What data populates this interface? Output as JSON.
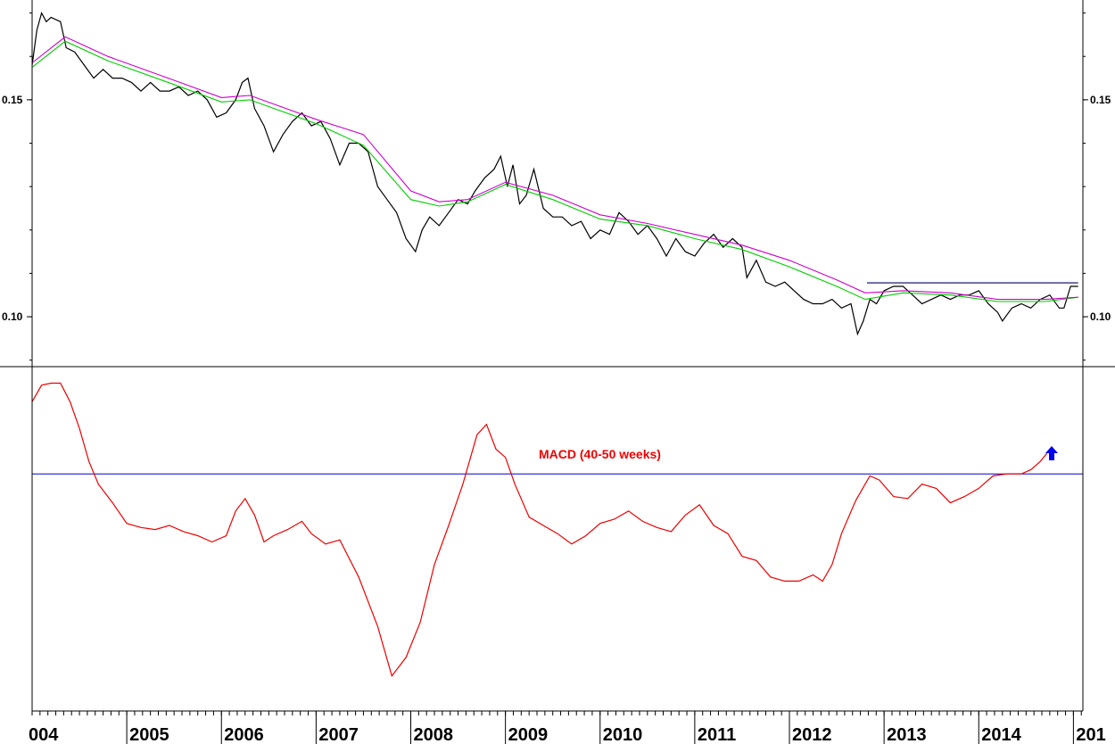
{
  "chart_data": [
    {
      "type": "line",
      "panel": "price",
      "ylim": [
        0.0885,
        0.173
      ],
      "y_ticks": [
        0.1,
        0.15
      ],
      "y_tick_labels": [
        "0.10",
        "0.15"
      ],
      "grid": false,
      "series": [
        {
          "color": "#000000",
          "points": [
            [
              2004.0,
              0.158
            ],
            [
              2004.05,
              0.166
            ],
            [
              2004.1,
              0.17
            ],
            [
              2004.15,
              0.168
            ],
            [
              2004.2,
              0.169
            ],
            [
              2004.3,
              0.168
            ],
            [
              2004.36,
              0.162
            ],
            [
              2004.45,
              0.161
            ],
            [
              2004.55,
              0.158
            ],
            [
              2004.65,
              0.155
            ],
            [
              2004.75,
              0.157
            ],
            [
              2004.85,
              0.155
            ],
            [
              2004.95,
              0.155
            ],
            [
              2005.05,
              0.154
            ],
            [
              2005.15,
              0.152
            ],
            [
              2005.25,
              0.154
            ],
            [
              2005.35,
              0.152
            ],
            [
              2005.45,
              0.152
            ],
            [
              2005.55,
              0.153
            ],
            [
              2005.65,
              0.151
            ],
            [
              2005.75,
              0.152
            ],
            [
              2005.85,
              0.15
            ],
            [
              2005.95,
              0.146
            ],
            [
              2006.05,
              0.147
            ],
            [
              2006.15,
              0.15
            ],
            [
              2006.22,
              0.154
            ],
            [
              2006.28,
              0.155
            ],
            [
              2006.35,
              0.148
            ],
            [
              2006.45,
              0.144
            ],
            [
              2006.55,
              0.138
            ],
            [
              2006.65,
              0.142
            ],
            [
              2006.75,
              0.145
            ],
            [
              2006.85,
              0.147
            ],
            [
              2006.95,
              0.144
            ],
            [
              2007.05,
              0.145
            ],
            [
              2007.15,
              0.141
            ],
            [
              2007.25,
              0.135
            ],
            [
              2007.35,
              0.14
            ],
            [
              2007.45,
              0.14
            ],
            [
              2007.55,
              0.138
            ],
            [
              2007.65,
              0.13
            ],
            [
              2007.75,
              0.127
            ],
            [
              2007.85,
              0.124
            ],
            [
              2007.95,
              0.118
            ],
            [
              2008.05,
              0.115
            ],
            [
              2008.12,
              0.12
            ],
            [
              2008.2,
              0.123
            ],
            [
              2008.3,
              0.121
            ],
            [
              2008.4,
              0.124
            ],
            [
              2008.5,
              0.127
            ],
            [
              2008.6,
              0.126
            ],
            [
              2008.68,
              0.129
            ],
            [
              2008.78,
              0.132
            ],
            [
              2008.88,
              0.134
            ],
            [
              2008.95,
              0.137
            ],
            [
              2009.02,
              0.13
            ],
            [
              2009.08,
              0.135
            ],
            [
              2009.15,
              0.126
            ],
            [
              2009.22,
              0.128
            ],
            [
              2009.3,
              0.134
            ],
            [
              2009.4,
              0.125
            ],
            [
              2009.5,
              0.123
            ],
            [
              2009.6,
              0.123
            ],
            [
              2009.7,
              0.121
            ],
            [
              2009.8,
              0.122
            ],
            [
              2009.9,
              0.118
            ],
            [
              2010.0,
              0.12
            ],
            [
              2010.1,
              0.119
            ],
            [
              2010.2,
              0.124
            ],
            [
              2010.3,
              0.122
            ],
            [
              2010.4,
              0.119
            ],
            [
              2010.5,
              0.121
            ],
            [
              2010.6,
              0.118
            ],
            [
              2010.7,
              0.114
            ],
            [
              2010.8,
              0.118
            ],
            [
              2010.9,
              0.115
            ],
            [
              2011.0,
              0.114
            ],
            [
              2011.1,
              0.117
            ],
            [
              2011.2,
              0.119
            ],
            [
              2011.3,
              0.116
            ],
            [
              2011.4,
              0.118
            ],
            [
              2011.5,
              0.116
            ],
            [
              2011.55,
              0.109
            ],
            [
              2011.65,
              0.113
            ],
            [
              2011.75,
              0.108
            ],
            [
              2011.85,
              0.107
            ],
            [
              2011.95,
              0.108
            ],
            [
              2012.05,
              0.106
            ],
            [
              2012.15,
              0.104
            ],
            [
              2012.25,
              0.103
            ],
            [
              2012.35,
              0.103
            ],
            [
              2012.45,
              0.104
            ],
            [
              2012.55,
              0.102
            ],
            [
              2012.65,
              0.103
            ],
            [
              2012.72,
              0.096
            ],
            [
              2012.78,
              0.099
            ],
            [
              2012.85,
              0.104
            ],
            [
              2012.92,
              0.103
            ],
            [
              2013.0,
              0.106
            ],
            [
              2013.1,
              0.107
            ],
            [
              2013.2,
              0.107
            ],
            [
              2013.3,
              0.105
            ],
            [
              2013.4,
              0.103
            ],
            [
              2013.5,
              0.104
            ],
            [
              2013.6,
              0.105
            ],
            [
              2013.7,
              0.104
            ],
            [
              2013.8,
              0.105
            ],
            [
              2013.9,
              0.105
            ],
            [
              2014.0,
              0.106
            ],
            [
              2014.1,
              0.103
            ],
            [
              2014.2,
              0.101
            ],
            [
              2014.25,
              0.099
            ],
            [
              2014.35,
              0.102
            ],
            [
              2014.45,
              0.103
            ],
            [
              2014.55,
              0.102
            ],
            [
              2014.65,
              0.104
            ],
            [
              2014.75,
              0.105
            ],
            [
              2014.85,
              0.102
            ],
            [
              2014.9,
              0.102
            ],
            [
              2014.97,
              0.107
            ],
            [
              2015.05,
              0.107
            ]
          ]
        },
        {
          "color": "#00cc00",
          "points": [
            [
              2004.0,
              0.1575
            ],
            [
              2004.35,
              0.1635
            ],
            [
              2004.8,
              0.159
            ],
            [
              2005.5,
              0.1535
            ],
            [
              2006.0,
              0.1495
            ],
            [
              2006.3,
              0.15
            ],
            [
              2007.0,
              0.1445
            ],
            [
              2007.5,
              0.1395
            ],
            [
              2008.0,
              0.127
            ],
            [
              2008.3,
              0.1255
            ],
            [
              2008.6,
              0.1265
            ],
            [
              2009.0,
              0.1305
            ],
            [
              2009.5,
              0.127
            ],
            [
              2010.0,
              0.1225
            ],
            [
              2010.5,
              0.121
            ],
            [
              2011.0,
              0.118
            ],
            [
              2011.5,
              0.1155
            ],
            [
              2012.0,
              0.1115
            ],
            [
              2012.5,
              0.107
            ],
            [
              2012.8,
              0.104
            ],
            [
              2013.2,
              0.1055
            ],
            [
              2013.7,
              0.105
            ],
            [
              2014.2,
              0.1035
            ],
            [
              2014.7,
              0.1035
            ],
            [
              2015.05,
              0.1045
            ]
          ]
        },
        {
          "color": "#cc00cc",
          "points": [
            [
              2004.0,
              0.1585
            ],
            [
              2004.35,
              0.1645
            ],
            [
              2004.8,
              0.16
            ],
            [
              2005.5,
              0.1545
            ],
            [
              2006.0,
              0.1505
            ],
            [
              2006.3,
              0.151
            ],
            [
              2007.0,
              0.1455
            ],
            [
              2007.5,
              0.142
            ],
            [
              2008.0,
              0.129
            ],
            [
              2008.3,
              0.1265
            ],
            [
              2008.6,
              0.127
            ],
            [
              2009.0,
              0.131
            ],
            [
              2009.5,
              0.128
            ],
            [
              2010.0,
              0.1235
            ],
            [
              2010.5,
              0.1215
            ],
            [
              2011.0,
              0.119
            ],
            [
              2011.5,
              0.1165
            ],
            [
              2012.0,
              0.113
            ],
            [
              2012.5,
              0.1085
            ],
            [
              2012.8,
              0.1055
            ],
            [
              2013.2,
              0.106
            ],
            [
              2013.7,
              0.1055
            ],
            [
              2014.2,
              0.104
            ],
            [
              2014.7,
              0.104
            ],
            [
              2015.05,
              0.1045
            ]
          ]
        },
        {
          "color": "#000066",
          "points": [
            [
              2012.82,
              0.1078
            ],
            [
              2015.05,
              0.1078
            ]
          ]
        }
      ]
    },
    {
      "type": "line",
      "panel": "macd",
      "ylim": [
        -1.15,
        0.52
      ],
      "zero_line": 0,
      "zero_line_color": "#0000cc",
      "annotation": "MACD (40-50 weeks)",
      "annotation_color": "#ee0000",
      "signal_arrow": "up",
      "signal_arrow_color": "#0000ee",
      "series": [
        {
          "color": "#ee0000",
          "points": [
            [
              2004.0,
              0.35
            ],
            [
              2004.1,
              0.43
            ],
            [
              2004.2,
              0.44
            ],
            [
              2004.3,
              0.44
            ],
            [
              2004.4,
              0.35
            ],
            [
              2004.5,
              0.22
            ],
            [
              2004.6,
              0.06
            ],
            [
              2004.7,
              -0.05
            ],
            [
              2004.85,
              -0.14
            ],
            [
              2005.0,
              -0.24
            ],
            [
              2005.15,
              -0.26
            ],
            [
              2005.3,
              -0.27
            ],
            [
              2005.45,
              -0.25
            ],
            [
              2005.6,
              -0.28
            ],
            [
              2005.75,
              -0.3
            ],
            [
              2005.9,
              -0.33
            ],
            [
              2006.05,
              -0.3
            ],
            [
              2006.15,
              -0.18
            ],
            [
              2006.25,
              -0.12
            ],
            [
              2006.35,
              -0.2
            ],
            [
              2006.45,
              -0.33
            ],
            [
              2006.55,
              -0.3
            ],
            [
              2006.7,
              -0.27
            ],
            [
              2006.85,
              -0.23
            ],
            [
              2006.95,
              -0.29
            ],
            [
              2007.1,
              -0.34
            ],
            [
              2007.25,
              -0.32
            ],
            [
              2007.45,
              -0.5
            ],
            [
              2007.65,
              -0.74
            ],
            [
              2007.8,
              -0.98
            ],
            [
              2007.95,
              -0.89
            ],
            [
              2008.1,
              -0.72
            ],
            [
              2008.25,
              -0.44
            ],
            [
              2008.4,
              -0.25
            ],
            [
              2008.55,
              -0.05
            ],
            [
              2008.7,
              0.19
            ],
            [
              2008.8,
              0.24
            ],
            [
              2008.9,
              0.12
            ],
            [
              2009.0,
              0.08
            ],
            [
              2009.1,
              -0.05
            ],
            [
              2009.25,
              -0.21
            ],
            [
              2009.4,
              -0.25
            ],
            [
              2009.55,
              -0.29
            ],
            [
              2009.7,
              -0.34
            ],
            [
              2009.85,
              -0.3
            ],
            [
              2010.0,
              -0.24
            ],
            [
              2010.15,
              -0.22
            ],
            [
              2010.3,
              -0.18
            ],
            [
              2010.45,
              -0.23
            ],
            [
              2010.6,
              -0.26
            ],
            [
              2010.75,
              -0.28
            ],
            [
              2010.9,
              -0.2
            ],
            [
              2011.05,
              -0.15
            ],
            [
              2011.2,
              -0.25
            ],
            [
              2011.35,
              -0.29
            ],
            [
              2011.5,
              -0.4
            ],
            [
              2011.65,
              -0.42
            ],
            [
              2011.8,
              -0.5
            ],
            [
              2011.95,
              -0.52
            ],
            [
              2012.1,
              -0.52
            ],
            [
              2012.25,
              -0.49
            ],
            [
              2012.35,
              -0.52
            ],
            [
              2012.45,
              -0.44
            ],
            [
              2012.55,
              -0.29
            ],
            [
              2012.7,
              -0.13
            ],
            [
              2012.85,
              -0.01
            ],
            [
              2012.95,
              -0.03
            ],
            [
              2013.1,
              -0.11
            ],
            [
              2013.25,
              -0.12
            ],
            [
              2013.4,
              -0.05
            ],
            [
              2013.55,
              -0.07
            ],
            [
              2013.7,
              -0.14
            ],
            [
              2013.85,
              -0.11
            ],
            [
              2014.0,
              -0.07
            ],
            [
              2014.15,
              -0.01
            ],
            [
              2014.3,
              0.0
            ],
            [
              2014.45,
              0.0
            ],
            [
              2014.55,
              0.02
            ],
            [
              2014.65,
              0.06
            ],
            [
              2014.72,
              0.1
            ]
          ]
        }
      ]
    }
  ],
  "x_axis": {
    "year_labels": [
      "004",
      "2005",
      "2006",
      "2007",
      "2008",
      "2009",
      "2010",
      "2011",
      "2012",
      "2013",
      "2014",
      "201"
    ]
  }
}
